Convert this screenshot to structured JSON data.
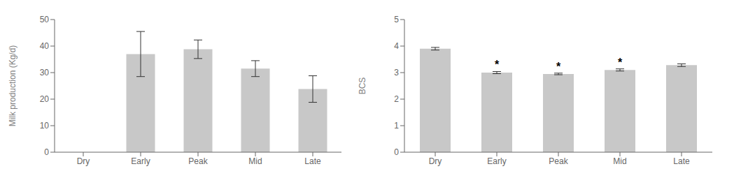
{
  "chart_data": [
    {
      "type": "bar",
      "categories": [
        "Dry",
        "Early",
        "Peak",
        "Mid",
        "Late"
      ],
      "values": [
        0,
        37.0,
        38.8,
        31.5,
        23.8
      ],
      "errors": [
        0,
        8.5,
        3.5,
        3.0,
        5.0
      ],
      "ylabel": "Milk production (Kg/d)",
      "ylim": [
        0,
        50
      ],
      "yticks": [
        0,
        10,
        20,
        30,
        40,
        50
      ],
      "color": "#c8c8c8",
      "grid": false
    },
    {
      "type": "bar",
      "categories": [
        "Dry",
        "Early",
        "Peak",
        "Mid",
        "Late"
      ],
      "values": [
        3.9,
        3.0,
        2.95,
        3.1,
        3.28
      ],
      "errors": [
        0.05,
        0.04,
        0.03,
        0.04,
        0.05
      ],
      "ylabel": "BCS",
      "ylim": [
        0,
        5
      ],
      "yticks": [
        0,
        1,
        2,
        3,
        4,
        5
      ],
      "color": "#c8c8c8",
      "grid": false,
      "annotations": [
        {
          "x": "Early",
          "text": "*"
        },
        {
          "x": "Peak",
          "text": "*"
        },
        {
          "x": "Mid",
          "text": "*"
        }
      ]
    }
  ]
}
